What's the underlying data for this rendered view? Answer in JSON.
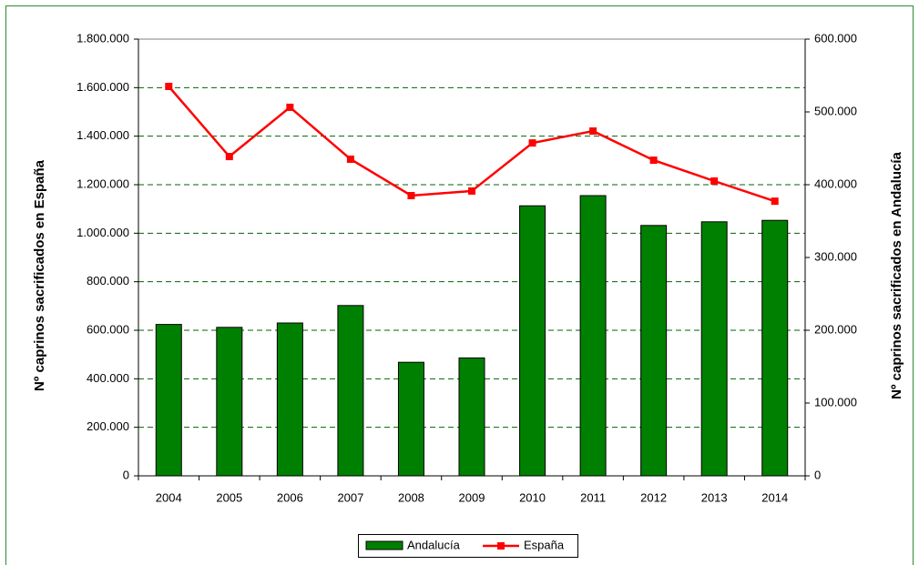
{
  "chart_data": {
    "type": "bar_line",
    "categories": [
      "2004",
      "2005",
      "2006",
      "2007",
      "2008",
      "2009",
      "2010",
      "2011",
      "2012",
      "2013",
      "2014"
    ],
    "ylabel": "Nº caprinos sacrificados en España",
    "y2label": "Nº caprinos sacrificados en Andalucía",
    "ylim": [
      0,
      1800000
    ],
    "yticks": [
      0,
      {
        "value": 200000,
        "label": "200.000"
      },
      {
        "value": 400000,
        "label": "400.000"
      },
      {
        "value": 600000,
        "label": "600.000"
      },
      {
        "value": 800000,
        "label": "800.000"
      },
      {
        "value": 1000000,
        "label": "1.000.000"
      },
      {
        "value": 1200000,
        "label": "1.200.000"
      },
      {
        "value": 1400000,
        "label": "1.400.000"
      },
      {
        "value": 1600000,
        "label": "1.600.000"
      },
      {
        "value": 1800000,
        "label": "1.800.000"
      }
    ],
    "y2lim": [
      0,
      600000
    ],
    "y2ticks": [
      0,
      {
        "value": 100000,
        "label": "100.000"
      },
      {
        "value": 200000,
        "label": "200.000"
      },
      {
        "value": 300000,
        "label": "300.000"
      },
      {
        "value": 400000,
        "label": "400.000"
      },
      {
        "value": 500000,
        "label": "500.000"
      },
      {
        "value": 600000,
        "label": "600.000"
      }
    ],
    "grid": true,
    "legend": "bottom",
    "series": [
      {
        "name": "Andalucía",
        "type": "bar",
        "axis": "y2",
        "color": "#008000",
        "values": [
          208000,
          204000,
          210000,
          234000,
          156000,
          162000,
          371000,
          385000,
          344000,
          349000,
          351000
        ]
      },
      {
        "name": "España",
        "type": "line",
        "color": "#ff0000",
        "values": [
          1605000,
          1316000,
          1519000,
          1305000,
          1155000,
          1174000,
          1372000,
          1421000,
          1301000,
          1215000,
          1132000
        ]
      }
    ]
  }
}
